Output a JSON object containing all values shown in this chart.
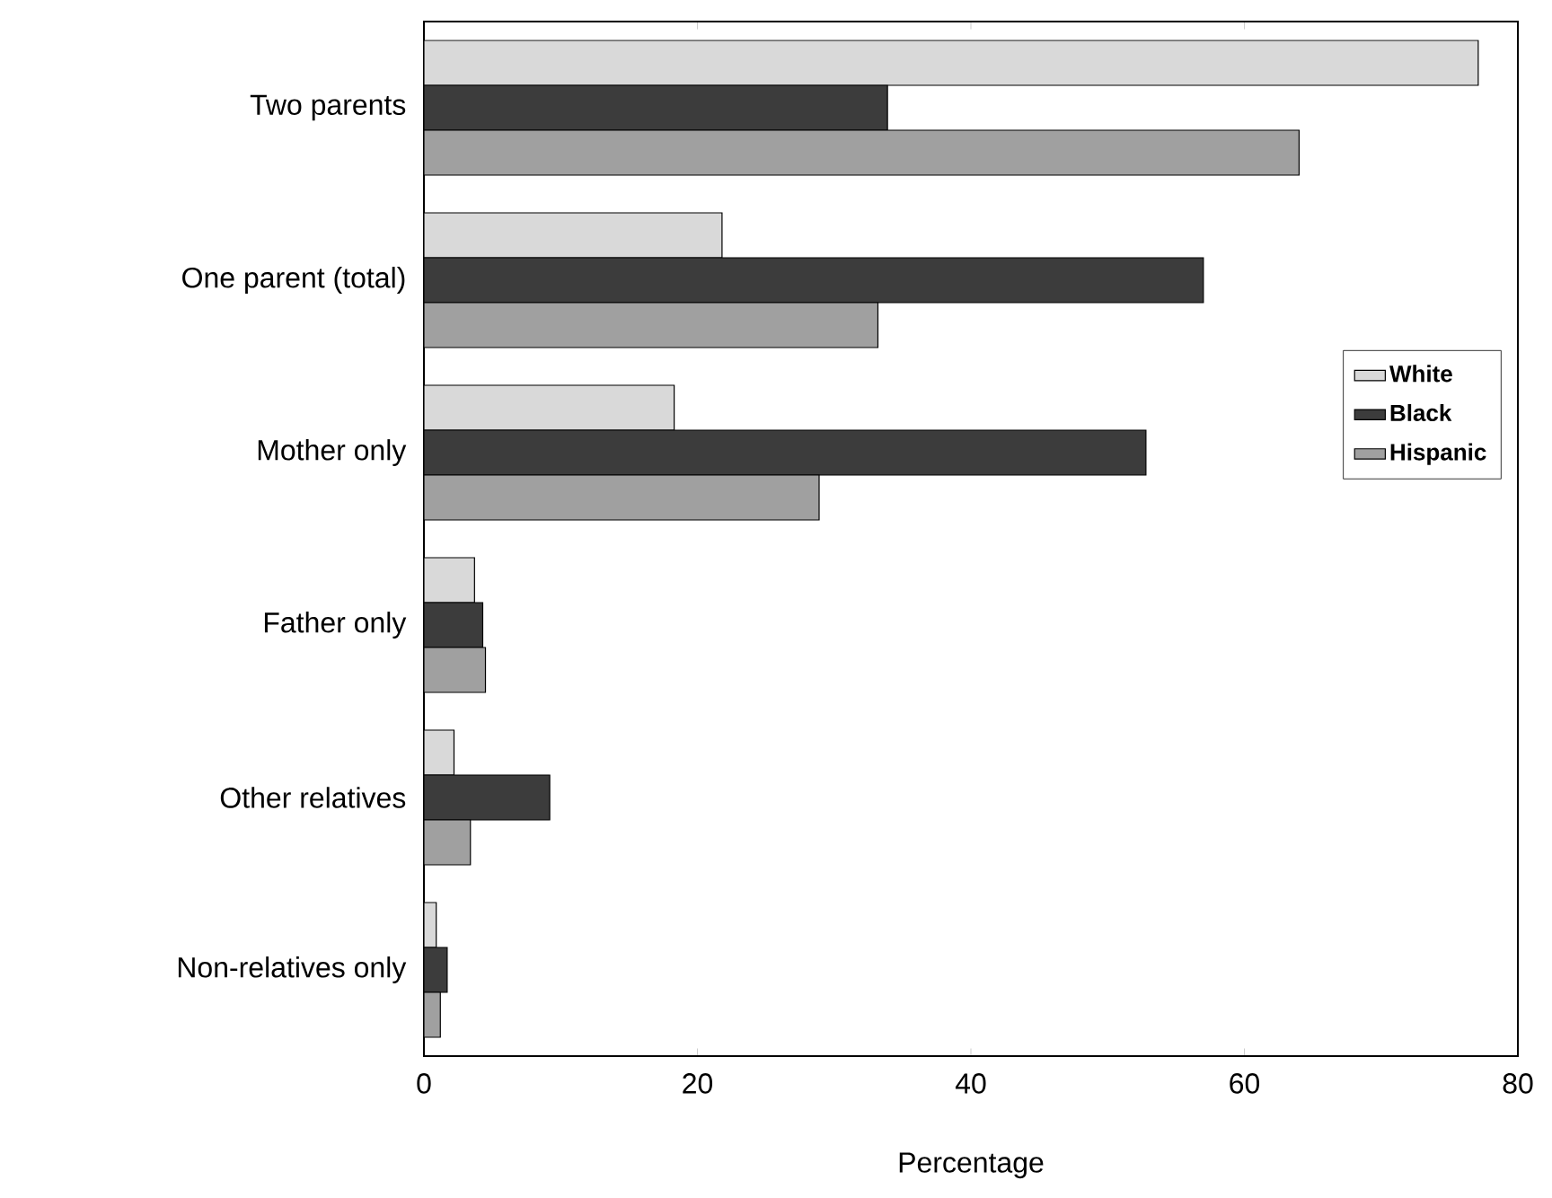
{
  "chart_data": {
    "type": "bar",
    "orientation": "horizontal",
    "xlabel": "Percentage",
    "categories": [
      "Two  parents",
      "One  parent  (total)",
      "Mother  only",
      "Father  only",
      "Other  relatives",
      "Non-relatives  only"
    ],
    "series": [
      {
        "name": "White",
        "color": "#d9d9d9",
        "values": [
          77.1,
          21.8,
          18.3,
          3.7,
          2.2,
          0.9
        ]
      },
      {
        "name": "Black",
        "color": "#3c3c3c",
        "values": [
          33.9,
          57.0,
          52.8,
          4.3,
          9.2,
          1.7
        ]
      },
      {
        "name": "Hispanic",
        "color": "#a0a0a0",
        "values": [
          64.0,
          33.2,
          28.9,
          4.5,
          3.4,
          1.2
        ]
      }
    ],
    "xlim": [
      0,
      80
    ],
    "xticks": [
      0,
      20,
      40,
      60,
      80
    ],
    "legend": "right",
    "grid": false
  }
}
